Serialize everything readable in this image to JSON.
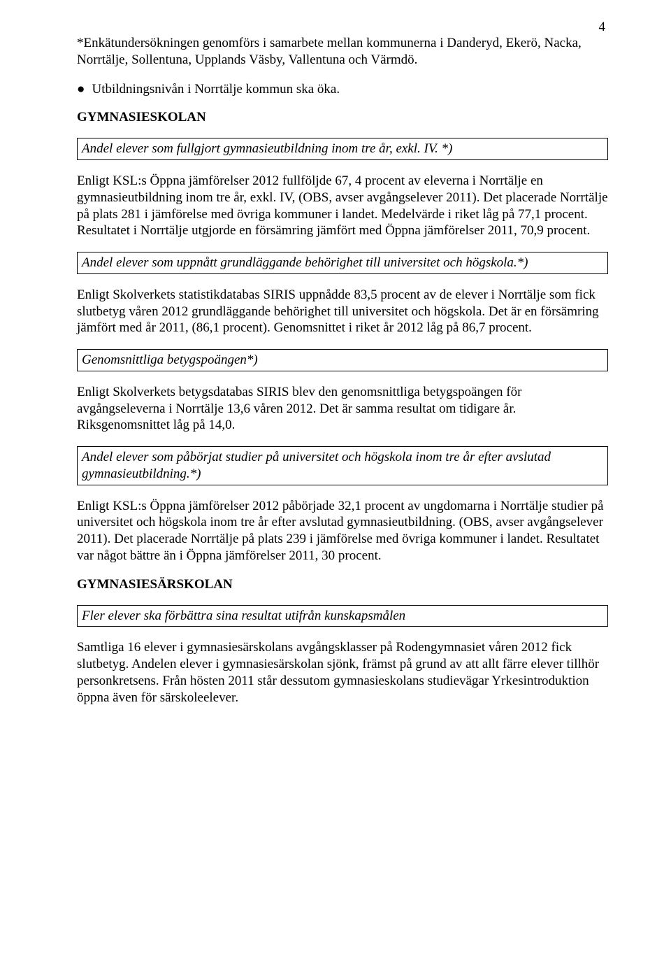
{
  "page_number": "4",
  "intro_note": "*Enkätundersökningen genomförs i samarbete mellan kommunerna i Danderyd, Ekerö, Nacka, Norrtälje, Sollentuna, Upplands Väsby, Vallentuna och Värmdö.",
  "bullet1": "Utbildningsnivån i Norrtälje kommun ska öka.",
  "head1": "GYMNASIESKOLAN",
  "box1": "Andel elever som fullgjort gymnasieutbildning inom tre år, exkl. IV. *)",
  "para1": "Enligt KSL:s Öppna jämförelser 2012 fullföljde 67, 4 procent av eleverna i Norrtälje en gymnasieutbildning inom tre år, exkl. IV, (OBS, avser avgångselever 2011). Det placerade Norrtälje på plats 281 i jämförelse med övriga kommuner i landet. Medelvärde i riket låg på 77,1 procent. Resultatet i Norrtälje utgjorde en försämring jämfört med Öppna jämförelser 2011, 70,9 procent.",
  "box2": "Andel elever som uppnått grundläggande behörighet till universitet och högskola.*)",
  "para2": "Enligt Skolverkets statistikdatabas SIRIS uppnådde 83,5 procent av de elever i Norrtälje som fick slutbetyg våren 2012 grundläggande behörighet till universitet och högskola. Det är en försämring jämfört med år 2011, (86,1 procent). Genomsnittet i riket år 2012 låg på 86,7 procent.",
  "box3": "Genomsnittliga betygspoängen*)",
  "para3": "Enligt Skolverkets betygsdatabas SIRIS blev den genomsnittliga betygspoängen för avgångseleverna i Norrtälje 13,6 våren 2012. Det är samma resultat om tidigare år. Riksgenomsnittet låg på 14,0.",
  "box4": "Andel elever som påbörjat studier på universitet och högskola inom tre år efter avslutad gymnasieutbildning.*)",
  "para4": "Enligt KSL:s Öppna jämförelser 2012 påbörjade 32,1 procent av ungdomarna i Norrtälje studier på universitet och högskola inom tre år efter avslutad gymnasieutbildning. (OBS, avser avgångselever 2011). Det placerade Norrtälje på plats 239 i jämförelse med övriga kommuner i landet. Resultatet var något bättre än i Öppna jämförelser 2011, 30 procent.",
  "head2": "GYMNASIESÄRSKOLAN",
  "box5": "Fler elever ska förbättra sina resultat utifrån kunskapsmålen",
  "para5": "Samtliga 16 elever i gymnasiesärskolans avgångsklasser på Rodengymnasiet våren 2012 fick slutbetyg. Andelen elever i gymnasiesärskolan sjönk, främst på grund av att allt färre elever tillhör personkretsens. Från hösten 2011 står dessutom gymnasieskolans studievägar Yrkesintroduktion öppna även för särskoleelever.",
  "colors": {
    "text": "#000000",
    "background": "#ffffff",
    "box_border": "#000000"
  },
  "typography": {
    "font_family": "Times New Roman",
    "body_fontsize_pt": 14,
    "line_height": 1.25
  }
}
